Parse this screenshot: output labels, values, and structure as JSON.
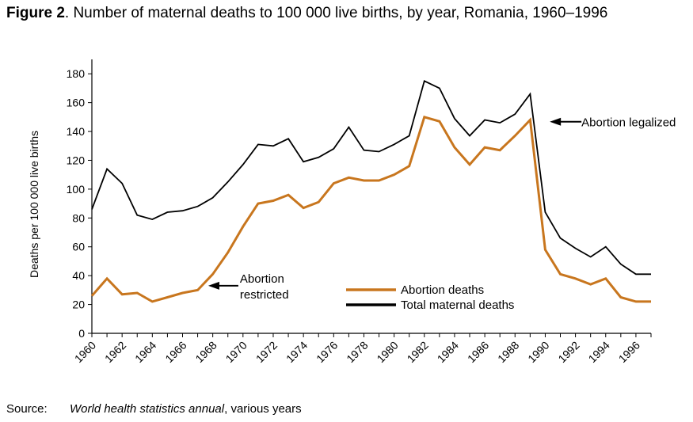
{
  "figure": {
    "label": "Figure 2",
    "title": ". Number of maternal deaths to 100 000 live births, by year, Romania, 1960–1996"
  },
  "source": {
    "label": "Source:",
    "publication": "World health statistics annual",
    "suffix": ", various years"
  },
  "colors": {
    "abortion": "#c8761e",
    "total": "#000000",
    "axis": "#000000"
  },
  "chart_data": {
    "type": "line",
    "ylabel": "Deaths per 100 000 live births",
    "xlabel": "",
    "xlim": [
      1960,
      1997
    ],
    "ylim": [
      0,
      190
    ],
    "yticks": [
      0,
      20,
      40,
      60,
      80,
      100,
      120,
      140,
      160,
      180
    ],
    "xtick_labels": [
      "1960",
      "1962",
      "1964",
      "1966",
      "1968",
      "1970",
      "1972",
      "1974",
      "1976",
      "1978",
      "1980",
      "1982",
      "1984",
      "1986",
      "1988",
      "1990",
      "1992",
      "1994",
      "1996"
    ],
    "grid": false,
    "legend": "bottom-center",
    "x": [
      1960,
      1961,
      1962,
      1963,
      1964,
      1965,
      1966,
      1967,
      1968,
      1969,
      1970,
      1971,
      1972,
      1973,
      1974,
      1975,
      1976,
      1977,
      1978,
      1979,
      1980,
      1981,
      1982,
      1983,
      1984,
      1985,
      1986,
      1987,
      1988,
      1989,
      1990,
      1991,
      1992,
      1993,
      1994,
      1995,
      1996,
      1997
    ],
    "series": [
      {
        "name": "Abortion deaths",
        "color": "#c8761e",
        "values": [
          26,
          38,
          27,
          28,
          22,
          25,
          28,
          30,
          41,
          56,
          74,
          90,
          92,
          96,
          87,
          91,
          104,
          108,
          106,
          106,
          110,
          116,
          150,
          147,
          129,
          117,
          129,
          127,
          137,
          148,
          58,
          41,
          38,
          34,
          38,
          25,
          22,
          22
        ]
      },
      {
        "name": "Total maternal deaths",
        "color": "#000000",
        "values": [
          86,
          114,
          104,
          82,
          79,
          84,
          85,
          88,
          94,
          105,
          117,
          131,
          130,
          135,
          119,
          122,
          128,
          143,
          127,
          126,
          131,
          137,
          175,
          170,
          149,
          137,
          148,
          146,
          152,
          166,
          84,
          66,
          59,
          53,
          60,
          48,
          41,
          41
        ]
      }
    ],
    "annotations": [
      {
        "text_lines": [
          "Abortion",
          "restricted"
        ],
        "x": 1967.7,
        "y": 33
      },
      {
        "text_lines": [
          "Abortion legalized"
        ],
        "x": 1990.3,
        "y": 147
      }
    ]
  }
}
